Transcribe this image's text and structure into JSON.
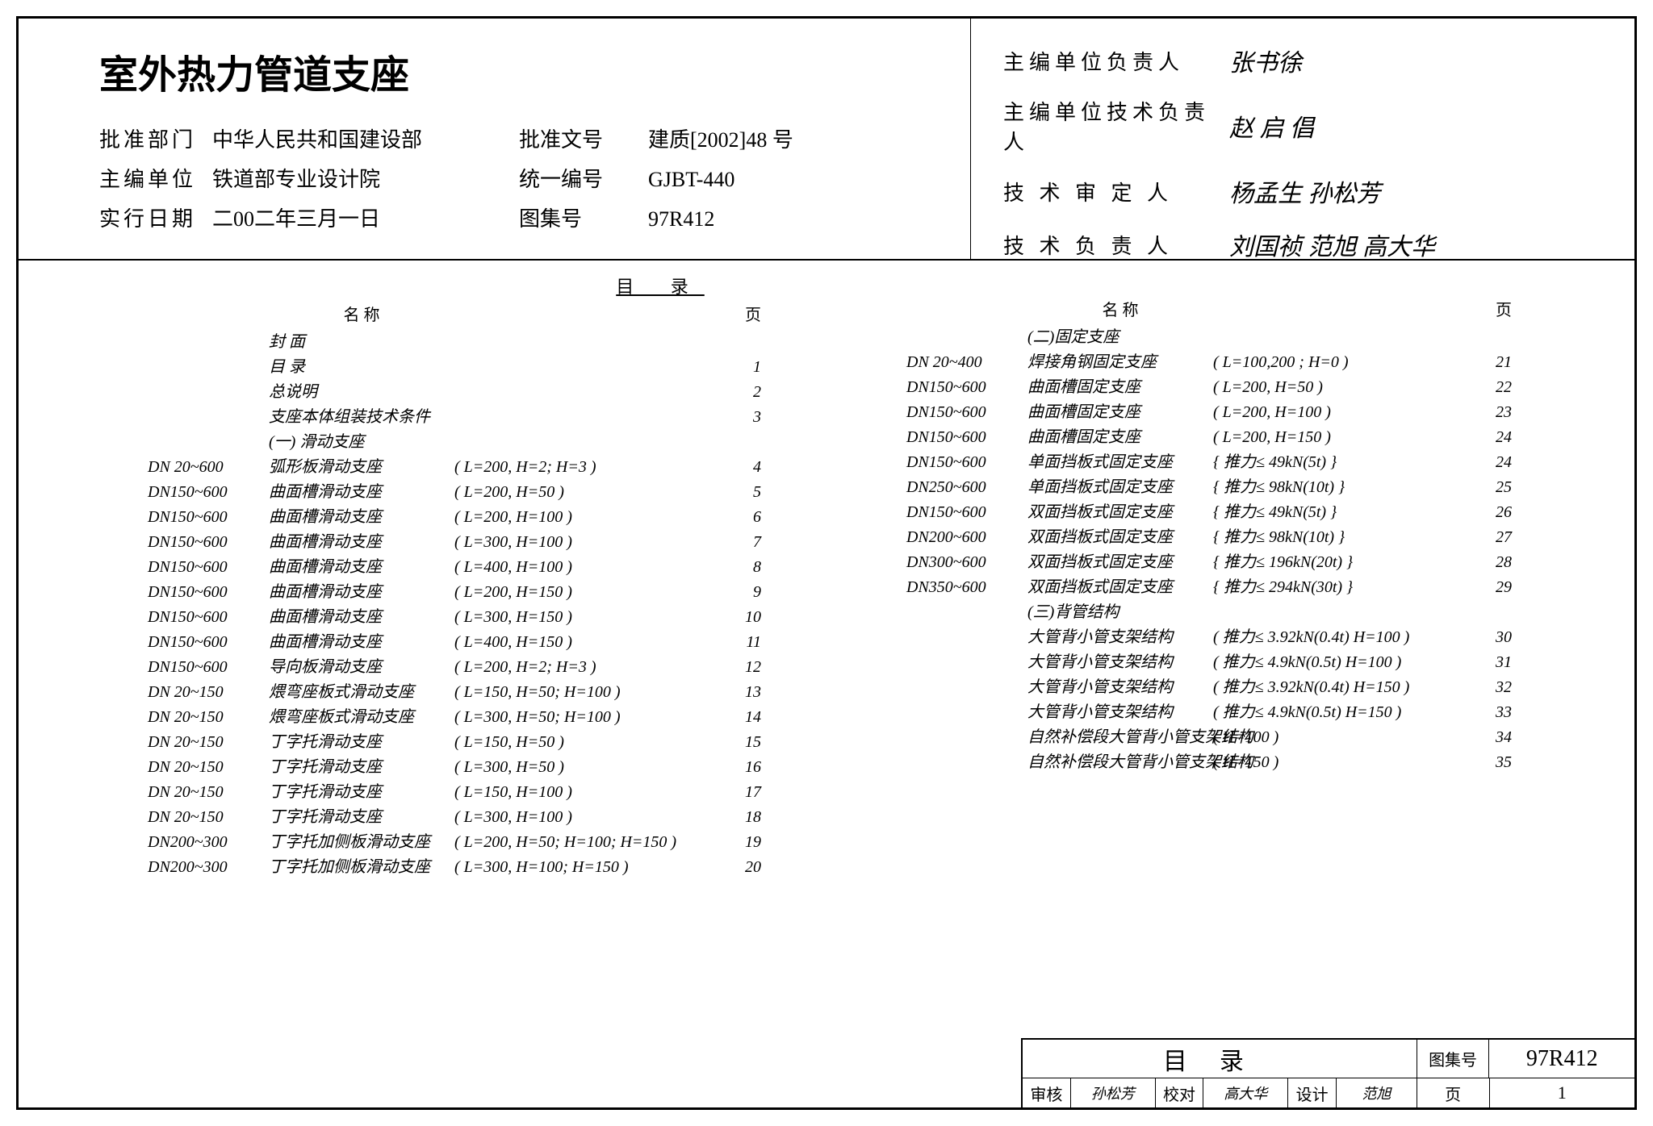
{
  "header": {
    "title": "室外热力管道支座",
    "rows": [
      {
        "label": "批准部门",
        "value": "中华人民共和国建设部",
        "label2": "批准文号",
        "value2": "建质[2002]48 号"
      },
      {
        "label": "主编单位",
        "value": "铁道部专业设计院",
        "label2": "统一编号",
        "value2": "GJBT-440"
      },
      {
        "label": "实行日期",
        "value": "二00二年三月一日",
        "label2": "图集号",
        "value2": "97R412"
      }
    ],
    "signatures": [
      {
        "label": "主编单位负责人",
        "name": "张书徐"
      },
      {
        "label": "主编单位技术负责人",
        "name": "赵 启 倡"
      },
      {
        "label": "技 术 审 定 人",
        "name": "杨孟生 孙松芳"
      },
      {
        "label": "技 术 负 责 人",
        "name": "刘国祯 范旭 高大华"
      }
    ]
  },
  "toc": {
    "heading": "目  录",
    "col_name": "名            称",
    "col_page": "页",
    "left": [
      {
        "dn": "",
        "name": "封 面",
        "spec": "",
        "page": ""
      },
      {
        "dn": "",
        "name": "目 录",
        "spec": "",
        "page": "1"
      },
      {
        "dn": "",
        "name": "总说明",
        "spec": "",
        "page": "2"
      },
      {
        "dn": "",
        "name": "支座本体组装技术条件",
        "spec": "",
        "page": "3"
      },
      {
        "dn": "",
        "name": "(一) 滑动支座",
        "spec": "",
        "page": ""
      },
      {
        "dn": "DN 20~600",
        "name": "弧形板滑动支座",
        "spec": "( L=200, H=2; H=3 )",
        "page": "4"
      },
      {
        "dn": "DN150~600",
        "name": "曲面槽滑动支座",
        "spec": "( L=200, H=50   )",
        "page": "5"
      },
      {
        "dn": "DN150~600",
        "name": "曲面槽滑动支座",
        "spec": "( L=200, H=100 )",
        "page": "6"
      },
      {
        "dn": "DN150~600",
        "name": "曲面槽滑动支座",
        "spec": "( L=300, H=100 )",
        "page": "7"
      },
      {
        "dn": "DN150~600",
        "name": "曲面槽滑动支座",
        "spec": "( L=400, H=100 )",
        "page": "8"
      },
      {
        "dn": "DN150~600",
        "name": "曲面槽滑动支座",
        "spec": "( L=200, H=150 )",
        "page": "9"
      },
      {
        "dn": "DN150~600",
        "name": "曲面槽滑动支座",
        "spec": "( L=300, H=150 )",
        "page": "10"
      },
      {
        "dn": "DN150~600",
        "name": "曲面槽滑动支座",
        "spec": "( L=400, H=150 )",
        "page": "11"
      },
      {
        "dn": "DN150~600",
        "name": "导向板滑动支座",
        "spec": "( L=200, H=2; H=3 )",
        "page": "12"
      },
      {
        "dn": "DN 20~150",
        "name": "煨弯座板式滑动支座",
        "spec": "( L=150, H=50; H=100 )",
        "page": "13"
      },
      {
        "dn": "DN 20~150",
        "name": "煨弯座板式滑动支座",
        "spec": "( L=300, H=50; H=100 )",
        "page": "14"
      },
      {
        "dn": "DN 20~150",
        "name": "丁字托滑动支座",
        "spec": "( L=150, H=50   )",
        "page": "15"
      },
      {
        "dn": "DN 20~150",
        "name": "丁字托滑动支座",
        "spec": "( L=300, H=50   )",
        "page": "16"
      },
      {
        "dn": "DN 20~150",
        "name": "丁字托滑动支座",
        "spec": "( L=150, H=100 )",
        "page": "17"
      },
      {
        "dn": "DN 20~150",
        "name": "丁字托滑动支座",
        "spec": "( L=300, H=100 )",
        "page": "18"
      },
      {
        "dn": "DN200~300",
        "name": "丁字托加侧板滑动支座",
        "spec": "( L=200, H=50; H=100; H=150 )",
        "page": "19"
      },
      {
        "dn": "DN200~300",
        "name": "丁字托加侧板滑动支座",
        "spec": "( L=300, H=100; H=150 )",
        "page": "20"
      }
    ],
    "right": [
      {
        "dn": "",
        "name": "(二)固定支座",
        "spec": "",
        "page": ""
      },
      {
        "dn": "DN 20~400",
        "name": "焊接角钢固定支座",
        "spec": "( L=100,200 ; H=0  )",
        "page": "21"
      },
      {
        "dn": "DN150~600",
        "name": "曲面槽固定支座",
        "spec": "( L=200, H=50   )",
        "page": "22"
      },
      {
        "dn": "DN150~600",
        "name": "曲面槽固定支座",
        "spec": "( L=200, H=100 )",
        "page": "23"
      },
      {
        "dn": "DN150~600",
        "name": "曲面槽固定支座",
        "spec": "( L=200, H=150 )",
        "page": "24"
      },
      {
        "dn": "DN150~600",
        "name": "单面挡板式固定支座",
        "spec": "{ 推力≤ 49kN(5t) }",
        "page": "24"
      },
      {
        "dn": "DN250~600",
        "name": "单面挡板式固定支座",
        "spec": "{ 推力≤ 98kN(10t) }",
        "page": "25"
      },
      {
        "dn": "DN150~600",
        "name": "双面挡板式固定支座",
        "spec": "{ 推力≤ 49kN(5t) }",
        "page": "26"
      },
      {
        "dn": "DN200~600",
        "name": "双面挡板式固定支座",
        "spec": "{ 推力≤ 98kN(10t) }",
        "page": "27"
      },
      {
        "dn": "DN300~600",
        "name": "双面挡板式固定支座",
        "spec": "{ 推力≤ 196kN(20t) }",
        "page": "28"
      },
      {
        "dn": "DN350~600",
        "name": "双面挡板式固定支座",
        "spec": "{ 推力≤ 294kN(30t) }",
        "page": "29"
      },
      {
        "dn": "",
        "name": "(三)背管结构",
        "spec": "",
        "page": ""
      },
      {
        "dn": "",
        "name": "大管背小管支架结构",
        "spec": "( 推力≤ 3.92kN(0.4t) H=100 )",
        "page": "30"
      },
      {
        "dn": "",
        "name": "大管背小管支架结构",
        "spec": "( 推力≤ 4.9kN(0.5t)  H=100 )",
        "page": "31"
      },
      {
        "dn": "",
        "name": "大管背小管支架结构",
        "spec": "( 推力≤ 3.92kN(0.4t) H=150 )",
        "page": "32"
      },
      {
        "dn": "",
        "name": "大管背小管支架结构",
        "spec": "( 推力≤ 4.9kN(0.5t)  H=150 )",
        "page": "33"
      },
      {
        "dn": "",
        "name": "自然补偿段大管背小管支架结构",
        "spec": "( H=100          )",
        "page": "34"
      },
      {
        "dn": "",
        "name": "自然补偿段大管背小管支架结构",
        "spec": "( H=150          )",
        "page": "35"
      }
    ]
  },
  "titleblock": {
    "title": "目录",
    "drawing_set_label": "图集号",
    "drawing_set": "97R412",
    "review_label": "审核",
    "review": "孙松芳",
    "check_label": "校对",
    "check": "高大华",
    "design_label": "设计",
    "design": "范旭",
    "page_label": "页",
    "page": "1"
  }
}
